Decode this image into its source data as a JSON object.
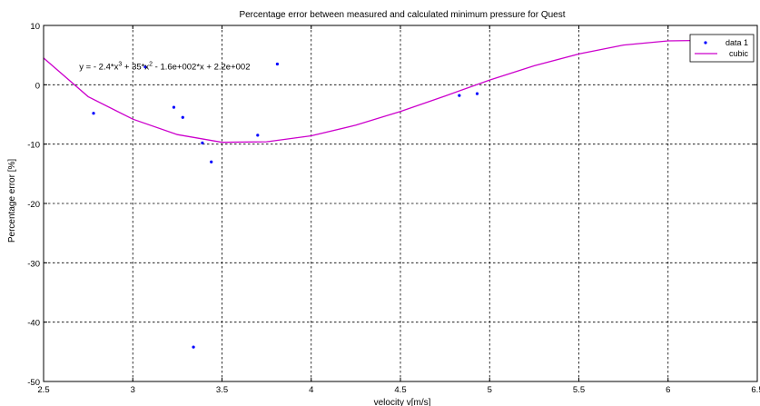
{
  "chart_data": {
    "type": "scatter",
    "title": "Percentage error between measured and calculated minimum pressure for Quest",
    "xlabel": "velocity v[m/s]",
    "ylabel": "Percentage error [%]",
    "xlim": [
      2.5,
      6.5
    ],
    "ylim": [
      -50,
      10
    ],
    "xticks": [
      "2.5",
      "3",
      "3.5",
      "4",
      "4.5",
      "5",
      "5.5",
      "6",
      "6.5"
    ],
    "yticks": [
      "10",
      "0",
      "-10",
      "-20",
      "-30",
      "-40",
      "-50"
    ],
    "grid": true,
    "legend_position": "top-right",
    "series": [
      {
        "name": "data 1",
        "style": "marker",
        "color": "#0000ff",
        "points": [
          {
            "x": 2.78,
            "y": -4.8
          },
          {
            "x": 3.07,
            "y": 3.0
          },
          {
            "x": 3.23,
            "y": -3.8
          },
          {
            "x": 3.28,
            "y": -5.5
          },
          {
            "x": 3.34,
            "y": -44.2
          },
          {
            "x": 3.39,
            "y": -9.8
          },
          {
            "x": 3.44,
            "y": -13.0
          },
          {
            "x": 3.7,
            "y": -8.5
          },
          {
            "x": 3.81,
            "y": 3.5
          },
          {
            "x": 4.83,
            "y": -1.8
          },
          {
            "x": 4.93,
            "y": -1.5
          }
        ]
      },
      {
        "name": "cubic",
        "style": "line",
        "color": "#cc00cc",
        "points": [
          {
            "x": 2.5,
            "y": 4.5
          },
          {
            "x": 2.75,
            "y": -2.0
          },
          {
            "x": 3.0,
            "y": -5.8
          },
          {
            "x": 3.25,
            "y": -8.4
          },
          {
            "x": 3.5,
            "y": -9.7
          },
          {
            "x": 3.75,
            "y": -9.6
          },
          {
            "x": 4.0,
            "y": -8.6
          },
          {
            "x": 4.25,
            "y": -6.8
          },
          {
            "x": 4.5,
            "y": -4.5
          },
          {
            "x": 4.75,
            "y": -1.9
          },
          {
            "x": 5.0,
            "y": 0.8
          },
          {
            "x": 5.25,
            "y": 3.2
          },
          {
            "x": 5.5,
            "y": 5.2
          },
          {
            "x": 5.75,
            "y": 6.7
          },
          {
            "x": 6.0,
            "y": 7.4
          },
          {
            "x": 6.25,
            "y": 7.5
          }
        ]
      }
    ],
    "annotation": {
      "segments": [
        {
          "text": "y = - 2.4*x",
          "sup": false
        },
        {
          "text": "3",
          "sup": true
        },
        {
          "text": " + 35*x",
          "sup": false
        },
        {
          "text": "2",
          "sup": true
        },
        {
          "text": " - 1.6e+002*x + 2.2e+002",
          "sup": false
        }
      ],
      "x": 2.7,
      "y": 3.0
    }
  }
}
